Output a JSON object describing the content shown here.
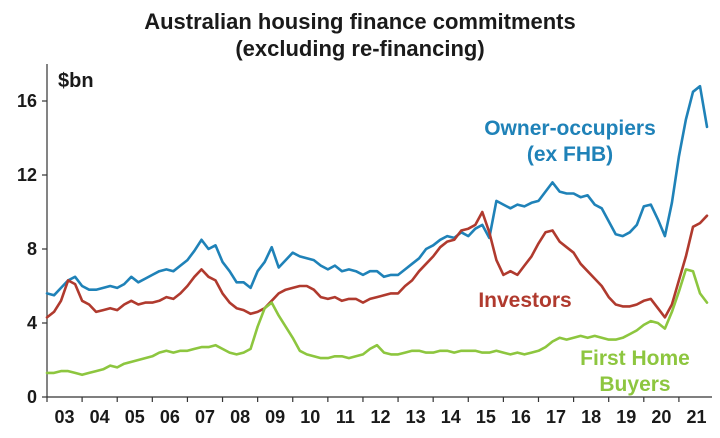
{
  "chart_data": {
    "type": "line",
    "title_line1": "Australian housing finance commitments",
    "title_line2": "(excluding re-financing)",
    "ylabel": "$bn",
    "xlabel": "",
    "ylim": [
      0,
      18
    ],
    "xlim": [
      2003,
      2021.8
    ],
    "yticks": [
      "0",
      "4",
      "8",
      "12",
      "16"
    ],
    "xticks": [
      "03",
      "04",
      "05",
      "06",
      "07",
      "08",
      "09",
      "10",
      "11",
      "12",
      "13",
      "14",
      "15",
      "16",
      "17",
      "18",
      "19",
      "20",
      "21"
    ],
    "grid": false,
    "series": [
      {
        "name": "Owner-occupiers (ex FHB)",
        "label_line1": "Owner-occupiers",
        "label_line2": "(ex FHB)",
        "color": "#1f82b8",
        "points": [
          [
            2003.0,
            5.6
          ],
          [
            2003.2,
            5.5
          ],
          [
            2003.4,
            5.9
          ],
          [
            2003.6,
            6.3
          ],
          [
            2003.8,
            6.5
          ],
          [
            2004.0,
            6.0
          ],
          [
            2004.2,
            5.8
          ],
          [
            2004.4,
            5.8
          ],
          [
            2004.6,
            5.9
          ],
          [
            2004.8,
            6.0
          ],
          [
            2005.0,
            5.9
          ],
          [
            2005.2,
            6.1
          ],
          [
            2005.4,
            6.5
          ],
          [
            2005.6,
            6.2
          ],
          [
            2005.8,
            6.4
          ],
          [
            2006.0,
            6.6
          ],
          [
            2006.2,
            6.8
          ],
          [
            2006.4,
            6.9
          ],
          [
            2006.6,
            6.8
          ],
          [
            2006.8,
            7.1
          ],
          [
            2007.0,
            7.4
          ],
          [
            2007.2,
            7.9
          ],
          [
            2007.4,
            8.5
          ],
          [
            2007.6,
            8.0
          ],
          [
            2007.8,
            8.2
          ],
          [
            2008.0,
            7.3
          ],
          [
            2008.2,
            6.8
          ],
          [
            2008.4,
            6.2
          ],
          [
            2008.6,
            6.2
          ],
          [
            2008.8,
            5.9
          ],
          [
            2009.0,
            6.8
          ],
          [
            2009.2,
            7.3
          ],
          [
            2009.4,
            8.1
          ],
          [
            2009.6,
            7.0
          ],
          [
            2009.8,
            7.4
          ],
          [
            2010.0,
            7.8
          ],
          [
            2010.2,
            7.6
          ],
          [
            2010.4,
            7.5
          ],
          [
            2010.6,
            7.4
          ],
          [
            2010.8,
            7.1
          ],
          [
            2011.0,
            6.9
          ],
          [
            2011.2,
            7.1
          ],
          [
            2011.4,
            6.8
          ],
          [
            2011.6,
            6.9
          ],
          [
            2011.8,
            6.8
          ],
          [
            2012.0,
            6.6
          ],
          [
            2012.2,
            6.8
          ],
          [
            2012.4,
            6.8
          ],
          [
            2012.6,
            6.5
          ],
          [
            2012.8,
            6.6
          ],
          [
            2013.0,
            6.6
          ],
          [
            2013.2,
            6.9
          ],
          [
            2013.4,
            7.2
          ],
          [
            2013.6,
            7.5
          ],
          [
            2013.8,
            8.0
          ],
          [
            2014.0,
            8.2
          ],
          [
            2014.2,
            8.5
          ],
          [
            2014.4,
            8.7
          ],
          [
            2014.6,
            8.6
          ],
          [
            2014.8,
            8.9
          ],
          [
            2015.0,
            8.7
          ],
          [
            2015.2,
            9.1
          ],
          [
            2015.4,
            9.3
          ],
          [
            2015.6,
            8.6
          ],
          [
            2015.8,
            10.6
          ],
          [
            2016.0,
            10.4
          ],
          [
            2016.2,
            10.2
          ],
          [
            2016.4,
            10.4
          ],
          [
            2016.6,
            10.3
          ],
          [
            2016.8,
            10.5
          ],
          [
            2017.0,
            10.6
          ],
          [
            2017.2,
            11.1
          ],
          [
            2017.4,
            11.6
          ],
          [
            2017.6,
            11.1
          ],
          [
            2017.8,
            11.0
          ],
          [
            2018.0,
            11.0
          ],
          [
            2018.2,
            10.8
          ],
          [
            2018.4,
            10.9
          ],
          [
            2018.6,
            10.4
          ],
          [
            2018.8,
            10.2
          ],
          [
            2019.0,
            9.5
          ],
          [
            2019.2,
            8.8
          ],
          [
            2019.4,
            8.7
          ],
          [
            2019.6,
            8.9
          ],
          [
            2019.8,
            9.3
          ],
          [
            2020.0,
            10.3
          ],
          [
            2020.2,
            10.4
          ],
          [
            2020.4,
            9.6
          ],
          [
            2020.6,
            8.7
          ],
          [
            2020.8,
            10.5
          ],
          [
            2021.0,
            13.0
          ],
          [
            2021.2,
            15.0
          ],
          [
            2021.4,
            16.5
          ],
          [
            2021.6,
            16.8
          ],
          [
            2021.8,
            14.6
          ]
        ]
      },
      {
        "name": "Investors",
        "label_line1": "Investors",
        "color": "#b03a2e",
        "points": [
          [
            2003.0,
            4.3
          ],
          [
            2003.2,
            4.6
          ],
          [
            2003.4,
            5.2
          ],
          [
            2003.6,
            6.3
          ],
          [
            2003.8,
            6.1
          ],
          [
            2004.0,
            5.2
          ],
          [
            2004.2,
            5.0
          ],
          [
            2004.4,
            4.6
          ],
          [
            2004.6,
            4.7
          ],
          [
            2004.8,
            4.8
          ],
          [
            2005.0,
            4.7
          ],
          [
            2005.2,
            5.0
          ],
          [
            2005.4,
            5.2
          ],
          [
            2005.6,
            5.0
          ],
          [
            2005.8,
            5.1
          ],
          [
            2006.0,
            5.1
          ],
          [
            2006.2,
            5.2
          ],
          [
            2006.4,
            5.4
          ],
          [
            2006.6,
            5.3
          ],
          [
            2006.8,
            5.6
          ],
          [
            2007.0,
            6.0
          ],
          [
            2007.2,
            6.5
          ],
          [
            2007.4,
            6.9
          ],
          [
            2007.6,
            6.5
          ],
          [
            2007.8,
            6.3
          ],
          [
            2008.0,
            5.6
          ],
          [
            2008.2,
            5.1
          ],
          [
            2008.4,
            4.8
          ],
          [
            2008.6,
            4.7
          ],
          [
            2008.8,
            4.5
          ],
          [
            2009.0,
            4.6
          ],
          [
            2009.2,
            4.8
          ],
          [
            2009.4,
            5.2
          ],
          [
            2009.6,
            5.6
          ],
          [
            2009.8,
            5.8
          ],
          [
            2010.0,
            5.9
          ],
          [
            2010.2,
            6.0
          ],
          [
            2010.4,
            6.0
          ],
          [
            2010.6,
            5.8
          ],
          [
            2010.8,
            5.4
          ],
          [
            2011.0,
            5.3
          ],
          [
            2011.2,
            5.4
          ],
          [
            2011.4,
            5.2
          ],
          [
            2011.6,
            5.3
          ],
          [
            2011.8,
            5.3
          ],
          [
            2012.0,
            5.1
          ],
          [
            2012.2,
            5.3
          ],
          [
            2012.4,
            5.4
          ],
          [
            2012.6,
            5.5
          ],
          [
            2012.8,
            5.6
          ],
          [
            2013.0,
            5.6
          ],
          [
            2013.2,
            6.0
          ],
          [
            2013.4,
            6.3
          ],
          [
            2013.6,
            6.8
          ],
          [
            2013.8,
            7.2
          ],
          [
            2014.0,
            7.6
          ],
          [
            2014.2,
            8.1
          ],
          [
            2014.4,
            8.4
          ],
          [
            2014.6,
            8.5
          ],
          [
            2014.8,
            9.0
          ],
          [
            2015.0,
            9.1
          ],
          [
            2015.2,
            9.3
          ],
          [
            2015.4,
            10.0
          ],
          [
            2015.6,
            8.9
          ],
          [
            2015.8,
            7.4
          ],
          [
            2016.0,
            6.6
          ],
          [
            2016.2,
            6.8
          ],
          [
            2016.4,
            6.6
          ],
          [
            2016.6,
            7.1
          ],
          [
            2016.8,
            7.6
          ],
          [
            2017.0,
            8.3
          ],
          [
            2017.2,
            8.9
          ],
          [
            2017.4,
            9.0
          ],
          [
            2017.6,
            8.4
          ],
          [
            2017.8,
            8.1
          ],
          [
            2018.0,
            7.8
          ],
          [
            2018.2,
            7.2
          ],
          [
            2018.4,
            6.8
          ],
          [
            2018.6,
            6.4
          ],
          [
            2018.8,
            6.0
          ],
          [
            2019.0,
            5.4
          ],
          [
            2019.2,
            5.0
          ],
          [
            2019.4,
            4.9
          ],
          [
            2019.6,
            4.9
          ],
          [
            2019.8,
            5.0
          ],
          [
            2020.0,
            5.2
          ],
          [
            2020.2,
            5.3
          ],
          [
            2020.4,
            4.8
          ],
          [
            2020.6,
            4.3
          ],
          [
            2020.8,
            5.0
          ],
          [
            2021.0,
            6.3
          ],
          [
            2021.2,
            7.6
          ],
          [
            2021.4,
            9.2
          ],
          [
            2021.6,
            9.4
          ],
          [
            2021.8,
            9.8
          ]
        ]
      },
      {
        "name": "First Home Buyers",
        "label_line1": "First Home",
        "label_line2": "Buyers",
        "color": "#8dc63f",
        "points": [
          [
            2003.0,
            1.3
          ],
          [
            2003.2,
            1.3
          ],
          [
            2003.4,
            1.4
          ],
          [
            2003.6,
            1.4
          ],
          [
            2003.8,
            1.3
          ],
          [
            2004.0,
            1.2
          ],
          [
            2004.2,
            1.3
          ],
          [
            2004.4,
            1.4
          ],
          [
            2004.6,
            1.5
          ],
          [
            2004.8,
            1.7
          ],
          [
            2005.0,
            1.6
          ],
          [
            2005.2,
            1.8
          ],
          [
            2005.4,
            1.9
          ],
          [
            2005.6,
            2.0
          ],
          [
            2005.8,
            2.1
          ],
          [
            2006.0,
            2.2
          ],
          [
            2006.2,
            2.4
          ],
          [
            2006.4,
            2.5
          ],
          [
            2006.6,
            2.4
          ],
          [
            2006.8,
            2.5
          ],
          [
            2007.0,
            2.5
          ],
          [
            2007.2,
            2.6
          ],
          [
            2007.4,
            2.7
          ],
          [
            2007.6,
            2.7
          ],
          [
            2007.8,
            2.8
          ],
          [
            2008.0,
            2.6
          ],
          [
            2008.2,
            2.4
          ],
          [
            2008.4,
            2.3
          ],
          [
            2008.6,
            2.4
          ],
          [
            2008.8,
            2.6
          ],
          [
            2009.0,
            3.8
          ],
          [
            2009.2,
            4.8
          ],
          [
            2009.4,
            5.1
          ],
          [
            2009.6,
            4.4
          ],
          [
            2009.8,
            3.8
          ],
          [
            2010.0,
            3.2
          ],
          [
            2010.2,
            2.5
          ],
          [
            2010.4,
            2.3
          ],
          [
            2010.6,
            2.2
          ],
          [
            2010.8,
            2.1
          ],
          [
            2011.0,
            2.1
          ],
          [
            2011.2,
            2.2
          ],
          [
            2011.4,
            2.2
          ],
          [
            2011.6,
            2.1
          ],
          [
            2011.8,
            2.2
          ],
          [
            2012.0,
            2.3
          ],
          [
            2012.2,
            2.6
          ],
          [
            2012.4,
            2.8
          ],
          [
            2012.6,
            2.4
          ],
          [
            2012.8,
            2.3
          ],
          [
            2013.0,
            2.3
          ],
          [
            2013.2,
            2.4
          ],
          [
            2013.4,
            2.5
          ],
          [
            2013.6,
            2.5
          ],
          [
            2013.8,
            2.4
          ],
          [
            2014.0,
            2.4
          ],
          [
            2014.2,
            2.5
          ],
          [
            2014.4,
            2.5
          ],
          [
            2014.6,
            2.4
          ],
          [
            2014.8,
            2.5
          ],
          [
            2015.0,
            2.5
          ],
          [
            2015.2,
            2.5
          ],
          [
            2015.4,
            2.4
          ],
          [
            2015.6,
            2.4
          ],
          [
            2015.8,
            2.5
          ],
          [
            2016.0,
            2.4
          ],
          [
            2016.2,
            2.3
          ],
          [
            2016.4,
            2.4
          ],
          [
            2016.6,
            2.3
          ],
          [
            2016.8,
            2.4
          ],
          [
            2017.0,
            2.5
          ],
          [
            2017.2,
            2.7
          ],
          [
            2017.4,
            3.0
          ],
          [
            2017.6,
            3.2
          ],
          [
            2017.8,
            3.1
          ],
          [
            2018.0,
            3.2
          ],
          [
            2018.2,
            3.3
          ],
          [
            2018.4,
            3.2
          ],
          [
            2018.6,
            3.3
          ],
          [
            2018.8,
            3.2
          ],
          [
            2019.0,
            3.1
          ],
          [
            2019.2,
            3.1
          ],
          [
            2019.4,
            3.2
          ],
          [
            2019.6,
            3.4
          ],
          [
            2019.8,
            3.6
          ],
          [
            2020.0,
            3.9
          ],
          [
            2020.2,
            4.1
          ],
          [
            2020.4,
            4.0
          ],
          [
            2020.6,
            3.7
          ],
          [
            2020.8,
            4.6
          ],
          [
            2021.0,
            5.7
          ],
          [
            2021.2,
            6.9
          ],
          [
            2021.4,
            6.8
          ],
          [
            2021.6,
            5.6
          ],
          [
            2021.8,
            5.1
          ]
        ]
      }
    ]
  }
}
